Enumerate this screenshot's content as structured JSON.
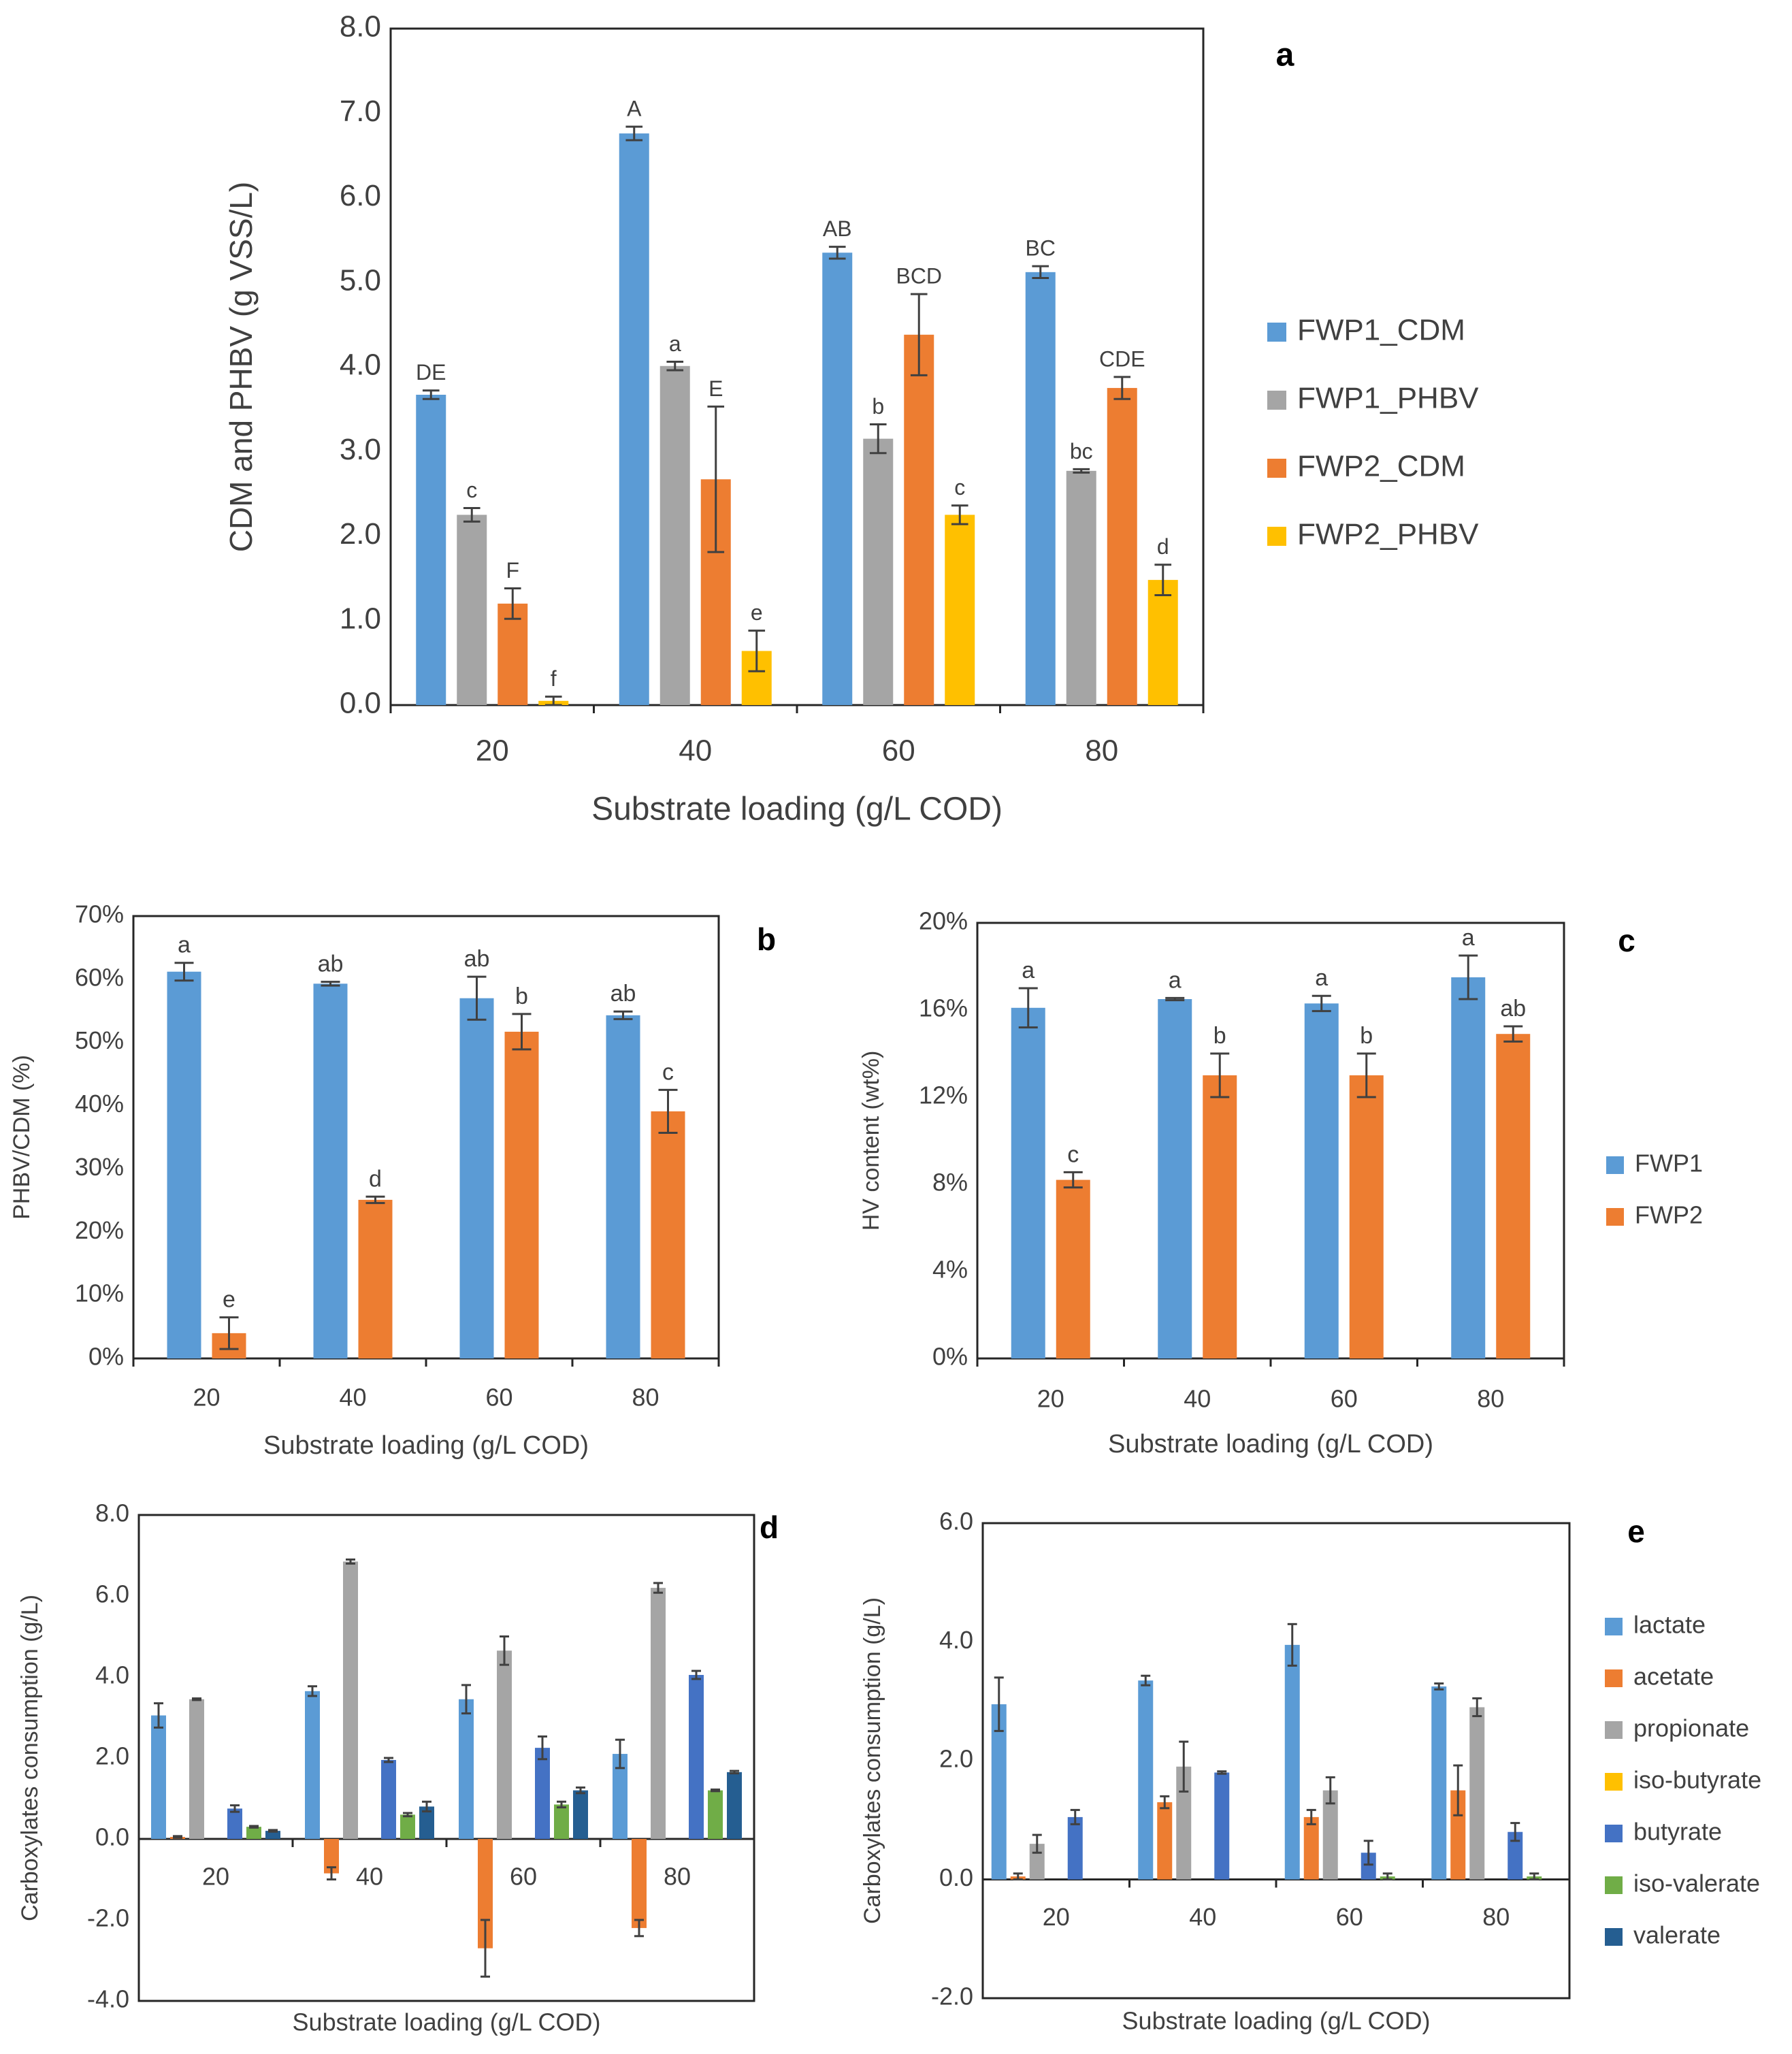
{
  "colors": {
    "blue": "#5B9BD5",
    "gray": "#A5A5A5",
    "orange": "#ED7D31",
    "yellow": "#FFC000",
    "darkblue": "#4472C4",
    "green": "#70AD47",
    "navy": "#255E91"
  },
  "chart_data": [
    {
      "panel": "a",
      "type": "bar",
      "title": "",
      "xlabel": "Substrate loading (g/L COD)",
      "ylabel": "CDM and PHBV (g VSS/L)",
      "categories": [
        "20",
        "40",
        "60",
        "80"
      ],
      "ylim": [
        0,
        8
      ],
      "yticks": [
        "0.0",
        "1.0",
        "2.0",
        "3.0",
        "4.0",
        "5.0",
        "6.0",
        "7.0",
        "8.0"
      ],
      "legend_position": "right",
      "series": [
        {
          "name": "FWP1_CDM",
          "color": "blue",
          "values": [
            3.67,
            6.76,
            5.35,
            5.12
          ],
          "errors": [
            0.05,
            0.08,
            0.07,
            0.07
          ],
          "labels": [
            "DE",
            "A",
            "AB",
            "BC"
          ]
        },
        {
          "name": "FWP1_PHBV",
          "color": "gray",
          "values": [
            2.25,
            4.01,
            3.15,
            2.77
          ],
          "errors": [
            0.08,
            0.05,
            0.17,
            0.02
          ],
          "labels": [
            "c",
            "a",
            "b",
            "bc"
          ]
        },
        {
          "name": "FWP2_CDM",
          "color": "orange",
          "values": [
            1.2,
            2.67,
            4.38,
            3.75
          ],
          "errors": [
            0.18,
            0.86,
            0.48,
            0.13
          ],
          "labels": [
            "F",
            "E",
            "BCD",
            "CDE"
          ]
        },
        {
          "name": "FWP2_PHBV",
          "color": "yellow",
          "values": [
            0.05,
            0.64,
            2.25,
            1.48
          ],
          "errors": [
            0.05,
            0.24,
            0.11,
            0.18
          ],
          "labels": [
            "f",
            "e",
            "c",
            "d"
          ]
        }
      ]
    },
    {
      "panel": "b",
      "type": "bar",
      "title": "",
      "xlabel": "Substrate loading (g/L COD)",
      "ylabel": "PHBV/CDM (%)",
      "categories": [
        "20",
        "40",
        "60",
        "80"
      ],
      "ylim": [
        0,
        70
      ],
      "yticks": [
        "0%",
        "10%",
        "20%",
        "30%",
        "40%",
        "50%",
        "60%",
        "70%"
      ],
      "series": [
        {
          "name": "FWP1",
          "color": "blue",
          "values": [
            61.2,
            59.3,
            57.0,
            54.3
          ],
          "errors": [
            1.4,
            0.3,
            3.4,
            0.6
          ],
          "labels": [
            "a",
            "ab",
            "ab",
            "ab"
          ]
        },
        {
          "name": "FWP2",
          "color": "orange",
          "values": [
            4.0,
            25.1,
            51.7,
            39.1
          ],
          "errors": [
            2.5,
            0.5,
            2.8,
            3.4
          ],
          "labels": [
            "e",
            "d",
            "b",
            "c"
          ]
        }
      ]
    },
    {
      "panel": "c",
      "type": "bar",
      "title": "",
      "xlabel": "Substrate loading (g/L COD)",
      "ylabel": "HV content (wt%)",
      "categories": [
        "20",
        "40",
        "60",
        "80"
      ],
      "ylim": [
        0,
        20
      ],
      "yticks": [
        "0%",
        "4%",
        "8%",
        "12%",
        "16%",
        "20%"
      ],
      "legend_position": "right",
      "series": [
        {
          "name": "FWP1",
          "color": "blue",
          "values": [
            16.1,
            16.5,
            16.3,
            17.5
          ],
          "errors": [
            0.9,
            0.05,
            0.35,
            1.0
          ],
          "labels": [
            "a",
            "a",
            "a",
            "a"
          ]
        },
        {
          "name": "FWP2",
          "color": "orange",
          "values": [
            8.2,
            13.0,
            13.0,
            14.9
          ],
          "errors": [
            0.35,
            1.0,
            1.0,
            0.35
          ],
          "labels": [
            "c",
            "b",
            "b",
            "ab"
          ]
        }
      ]
    },
    {
      "panel": "d",
      "type": "bar",
      "title": "",
      "xlabel": "Substrate loading (g/L COD)",
      "ylabel": "Carboxylates consumption (g/L)",
      "categories": [
        "20",
        "40",
        "60",
        "80"
      ],
      "ylim": [
        -4,
        8
      ],
      "yticks": [
        "-4.0",
        "-2.0",
        "0.0",
        "2.0",
        "4.0",
        "6.0",
        "8.0"
      ],
      "series": [
        {
          "name": "lactate",
          "color": "blue",
          "values": [
            3.05,
            3.65,
            3.45,
            2.1
          ],
          "errors": [
            0.3,
            0.12,
            0.35,
            0.35
          ]
        },
        {
          "name": "acetate",
          "color": "orange",
          "values": [
            0.05,
            -0.85,
            -2.7,
            -2.2
          ],
          "errors": [
            0.02,
            0.15,
            0.7,
            0.2
          ]
        },
        {
          "name": "propionate",
          "color": "gray",
          "values": [
            3.45,
            6.85,
            4.65,
            6.2
          ],
          "errors": [
            0.02,
            0.05,
            0.35,
            0.12
          ]
        },
        {
          "name": "iso-butyrate",
          "color": "yellow",
          "values": [
            0,
            0,
            0,
            0
          ],
          "errors": [
            0,
            0,
            0,
            0
          ]
        },
        {
          "name": "butyrate",
          "color": "darkblue",
          "values": [
            0.75,
            1.95,
            2.25,
            4.05
          ],
          "errors": [
            0.08,
            0.05,
            0.28,
            0.1
          ]
        },
        {
          "name": "iso-valerate",
          "color": "green",
          "values": [
            0.3,
            0.6,
            0.85,
            1.2
          ],
          "errors": [
            0.02,
            0.04,
            0.07,
            0.02
          ]
        },
        {
          "name": "valerate",
          "color": "navy",
          "values": [
            0.2,
            0.8,
            1.2,
            1.65
          ],
          "errors": [
            0.02,
            0.12,
            0.07,
            0.03
          ]
        }
      ]
    },
    {
      "panel": "e",
      "type": "bar",
      "title": "",
      "xlabel": "Substrate loading (g/L COD)",
      "ylabel": "Carboxylates consumption (g/L)",
      "categories": [
        "20",
        "40",
        "60",
        "80"
      ],
      "ylim": [
        -2,
        6
      ],
      "yticks": [
        "-2.0",
        "0.0",
        "2.0",
        "4.0",
        "6.0"
      ],
      "legend_position": "right",
      "series": [
        {
          "name": "lactate",
          "color": "blue",
          "values": [
            2.95,
            3.35,
            3.95,
            3.25
          ],
          "errors": [
            0.45,
            0.08,
            0.35,
            0.05
          ]
        },
        {
          "name": "acetate",
          "color": "orange",
          "values": [
            0.05,
            1.3,
            1.05,
            1.5
          ],
          "errors": [
            0.05,
            0.1,
            0.12,
            0.42
          ]
        },
        {
          "name": "propionate",
          "color": "gray",
          "values": [
            0.6,
            1.9,
            1.5,
            2.9
          ],
          "errors": [
            0.15,
            0.42,
            0.22,
            0.15
          ]
        },
        {
          "name": "iso-butyrate",
          "color": "yellow",
          "values": [
            0,
            0,
            0,
            0
          ],
          "errors": [
            0,
            0,
            0,
            0
          ]
        },
        {
          "name": "butyrate",
          "color": "darkblue",
          "values": [
            1.05,
            1.8,
            0.45,
            0.8
          ],
          "errors": [
            0.12,
            0.02,
            0.2,
            0.15
          ]
        },
        {
          "name": "iso-valerate",
          "color": "green",
          "values": [
            0,
            0,
            0.05,
            0.05
          ],
          "errors": [
            0,
            0,
            0.05,
            0.05
          ]
        },
        {
          "name": "valerate",
          "color": "navy",
          "values": [
            0,
            0,
            0,
            0
          ],
          "errors": [
            0,
            0,
            0,
            0
          ]
        }
      ]
    }
  ]
}
